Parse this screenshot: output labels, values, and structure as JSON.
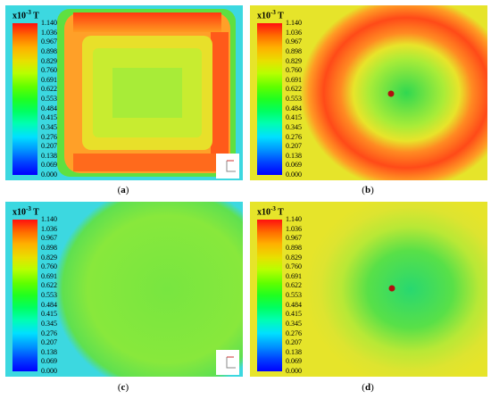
{
  "unit": {
    "base": "x10",
    "exp": "-3",
    "suffix": " T"
  },
  "ticks": [
    "1.140",
    "1.036",
    "0.967",
    "0.898",
    "0.829",
    "0.760",
    "0.691",
    "0.622",
    "0.553",
    "0.484",
    "0.415",
    "0.345",
    "0.276",
    "0.207",
    "0.138",
    "0.069",
    "0.000"
  ],
  "panels": [
    {
      "id": "a",
      "caption": "a"
    },
    {
      "id": "b",
      "caption": "b"
    },
    {
      "id": "c",
      "caption": "c"
    },
    {
      "id": "d",
      "caption": "d"
    }
  ],
  "colors": {
    "red": "#ff2a10",
    "orange": "#ff9a20",
    "yellow": "#e6e42a",
    "green": "#6fe63b",
    "cyan": "#30d8e8",
    "point": "#b01010"
  }
}
